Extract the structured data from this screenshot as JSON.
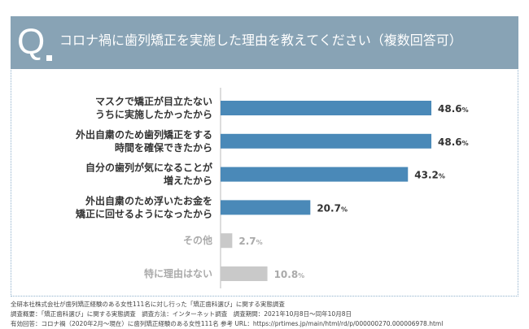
{
  "header": {
    "q_label": "Q",
    "title": "コロナ禍に歯列矯正を実施した理由を教えてください（複数回答可）"
  },
  "chart_data": {
    "type": "bar",
    "orientation": "horizontal",
    "unit": "%",
    "xlim": [
      0,
      100
    ],
    "categories": [
      [
        "マスクで矯正が目立たない",
        "うちに実施したかったから"
      ],
      [
        "外出自粛のため歯列矯正をする",
        "時間を確保できたから"
      ],
      [
        "自分の歯列が気になることが",
        "増えたから"
      ],
      [
        "外出自粛のため浮いたお金を",
        "矯正に回せるようになったから"
      ],
      [
        "その他"
      ],
      [
        "特に理由はない"
      ]
    ],
    "values": [
      48.6,
      48.6,
      43.2,
      20.7,
      2.7,
      10.8
    ],
    "bar_colors": [
      "#4a89b8",
      "#4a89b8",
      "#4a89b8",
      "#4a89b8",
      "#c9c9c9",
      "#c9c9c9"
    ],
    "label_colors": [
      "#333333",
      "#333333",
      "#333333",
      "#333333",
      "#aaaaaa",
      "#aaaaaa"
    ],
    "grid": false
  },
  "notes": [
    "全研本社株式会社が歯列矯正経験のある女性111名に対し行った「矯正歯科選び」に関する実態調査",
    "調査概要：「矯正歯科選び」に関する実態調査　調査方法：インターネット調査　調査期間：2021年10月8日～同年10月8日",
    "有効回答：コロナ禍（2020年2月～現在）に歯列矯正経験のある女性111名 参考 URL：https://prtimes.jp/main/html/rd/p/000000270.000006978.html"
  ]
}
